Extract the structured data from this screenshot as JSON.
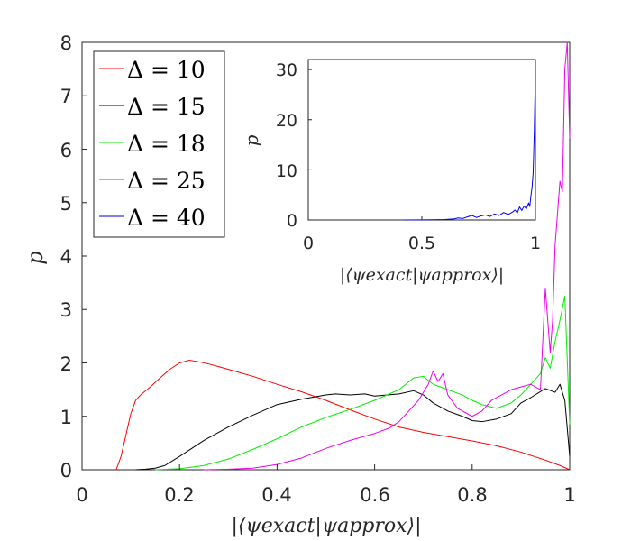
{
  "chart_data": [
    {
      "type": "line",
      "title": "",
      "xlabel": "|⟨ψexact|ψapprox⟩|",
      "ylabel": "p",
      "xlim": [
        0,
        1
      ],
      "ylim": [
        0,
        8
      ],
      "xticks": [
        0,
        0.2,
        0.4,
        0.6,
        0.8,
        1
      ],
      "xtick_labels": [
        "0",
        "0.2",
        "0.4",
        "0.6",
        "0.8",
        "1"
      ],
      "yticks": [
        0,
        1,
        2,
        3,
        4,
        5,
        6,
        7,
        8
      ],
      "ytick_labels": [
        "0",
        "1",
        "2",
        "3",
        "4",
        "5",
        "6",
        "7",
        "8"
      ],
      "legend": {
        "placement": "top-left",
        "entries": [
          {
            "label": "Δ = 10",
            "color": "#ff0000"
          },
          {
            "label": "Δ = 15",
            "color": "#000000"
          },
          {
            "label": "Δ = 18",
            "color": "#00ee00"
          },
          {
            "label": "Δ = 25",
            "color": "#ee00ee"
          },
          {
            "label": "Δ = 40",
            "color": "#0000ee"
          }
        ]
      },
      "series": [
        {
          "name": "Δ = 10",
          "color": "#ff0000",
          "x": [
            0.07,
            0.08,
            0.09,
            0.1,
            0.11,
            0.12,
            0.14,
            0.16,
            0.18,
            0.2,
            0.22,
            0.24,
            0.26,
            0.28,
            0.3,
            0.35,
            0.4,
            0.45,
            0.5,
            0.55,
            0.6,
            0.65,
            0.7,
            0.75,
            0.8,
            0.85,
            0.9,
            0.95,
            0.98,
            1.0
          ],
          "y": [
            0,
            0.25,
            0.65,
            1.05,
            1.3,
            1.4,
            1.55,
            1.72,
            1.88,
            2.0,
            2.05,
            2.02,
            1.98,
            1.93,
            1.88,
            1.75,
            1.6,
            1.46,
            1.3,
            1.12,
            0.95,
            0.8,
            0.7,
            0.62,
            0.54,
            0.45,
            0.33,
            0.18,
            0.08,
            0
          ]
        },
        {
          "name": "Δ = 15",
          "color": "#000000",
          "x": [
            0.11,
            0.13,
            0.15,
            0.17,
            0.2,
            0.25,
            0.3,
            0.35,
            0.4,
            0.45,
            0.5,
            0.52,
            0.55,
            0.58,
            0.6,
            0.65,
            0.68,
            0.7,
            0.72,
            0.75,
            0.78,
            0.8,
            0.82,
            0.85,
            0.88,
            0.9,
            0.92,
            0.95,
            0.97,
            0.98,
            0.99,
            1.0
          ],
          "y": [
            0,
            0.01,
            0.03,
            0.08,
            0.25,
            0.55,
            0.8,
            1.02,
            1.22,
            1.32,
            1.4,
            1.42,
            1.4,
            1.42,
            1.38,
            1.42,
            1.48,
            1.4,
            1.25,
            1.1,
            1.0,
            0.92,
            0.9,
            0.95,
            1.05,
            1.25,
            1.35,
            1.52,
            1.45,
            1.6,
            1.3,
            0.25
          ]
        },
        {
          "name": "Δ = 18",
          "color": "#00ee00",
          "x": [
            0.15,
            0.2,
            0.25,
            0.3,
            0.35,
            0.4,
            0.45,
            0.5,
            0.55,
            0.6,
            0.65,
            0.68,
            0.7,
            0.72,
            0.75,
            0.78,
            0.8,
            0.82,
            0.85,
            0.88,
            0.9,
            0.92,
            0.94,
            0.95,
            0.96,
            0.97,
            0.98,
            0.99,
            1.0
          ],
          "y": [
            0,
            0.02,
            0.08,
            0.2,
            0.38,
            0.58,
            0.8,
            0.98,
            1.13,
            1.3,
            1.5,
            1.72,
            1.75,
            1.6,
            1.5,
            1.4,
            1.3,
            1.22,
            1.15,
            1.25,
            1.4,
            1.6,
            1.8,
            2.1,
            1.9,
            2.4,
            2.8,
            3.25,
            0.85
          ]
        },
        {
          "name": "Δ = 25",
          "color": "#ee00ee",
          "x": [
            0.25,
            0.3,
            0.35,
            0.4,
            0.45,
            0.5,
            0.55,
            0.6,
            0.63,
            0.65,
            0.67,
            0.69,
            0.71,
            0.72,
            0.73,
            0.74,
            0.75,
            0.77,
            0.8,
            0.82,
            0.84,
            0.86,
            0.88,
            0.9,
            0.92,
            0.94,
            0.95,
            0.96,
            0.965,
            0.97,
            0.975,
            0.98,
            0.985,
            0.99,
            0.995,
            1.0
          ],
          "y": [
            0,
            0.01,
            0.03,
            0.1,
            0.22,
            0.4,
            0.55,
            0.68,
            0.78,
            0.9,
            1.1,
            1.3,
            1.6,
            1.85,
            1.65,
            1.8,
            1.4,
            1.15,
            1.0,
            1.1,
            1.3,
            1.4,
            1.5,
            1.55,
            1.6,
            1.5,
            3.4,
            2.2,
            2.8,
            4.2,
            4.8,
            5.4,
            5.2,
            7.5,
            8.0,
            6.2
          ]
        },
        {
          "name": "Δ = 40",
          "color": "#0000ee",
          "visible_in_main": false,
          "x": [],
          "y": []
        }
      ]
    },
    {
      "type": "line",
      "title": "",
      "xlabel": "|⟨ψexact|ψapprox⟩|",
      "ylabel": "p",
      "xlim": [
        0,
        1
      ],
      "ylim": [
        0,
        32
      ],
      "xticks": [
        0,
        0.5,
        1
      ],
      "xtick_labels": [
        "0",
        "0.5",
        "1"
      ],
      "yticks": [
        0,
        10,
        20,
        30
      ],
      "ytick_labels": [
        "0",
        "10",
        "20",
        "30"
      ],
      "series": [
        {
          "name": "Δ = 40",
          "color": "#0000ee",
          "x": [
            0.42,
            0.5,
            0.55,
            0.6,
            0.64,
            0.66,
            0.68,
            0.7,
            0.72,
            0.74,
            0.76,
            0.78,
            0.8,
            0.82,
            0.84,
            0.86,
            0.88,
            0.9,
            0.91,
            0.92,
            0.93,
            0.94,
            0.95,
            0.96,
            0.97,
            0.975,
            0.98,
            0.985,
            0.99,
            0.995,
            1.0
          ],
          "y": [
            0,
            0.02,
            0.05,
            0.1,
            0.2,
            0.4,
            0.3,
            0.6,
            0.9,
            0.5,
            0.8,
            1.0,
            0.7,
            1.2,
            0.9,
            1.5,
            1.1,
            1.6,
            2.0,
            1.4,
            2.6,
            1.9,
            2.8,
            2.2,
            3.4,
            2.7,
            4.8,
            6.5,
            9.5,
            18.0,
            30.0
          ]
        }
      ]
    }
  ]
}
